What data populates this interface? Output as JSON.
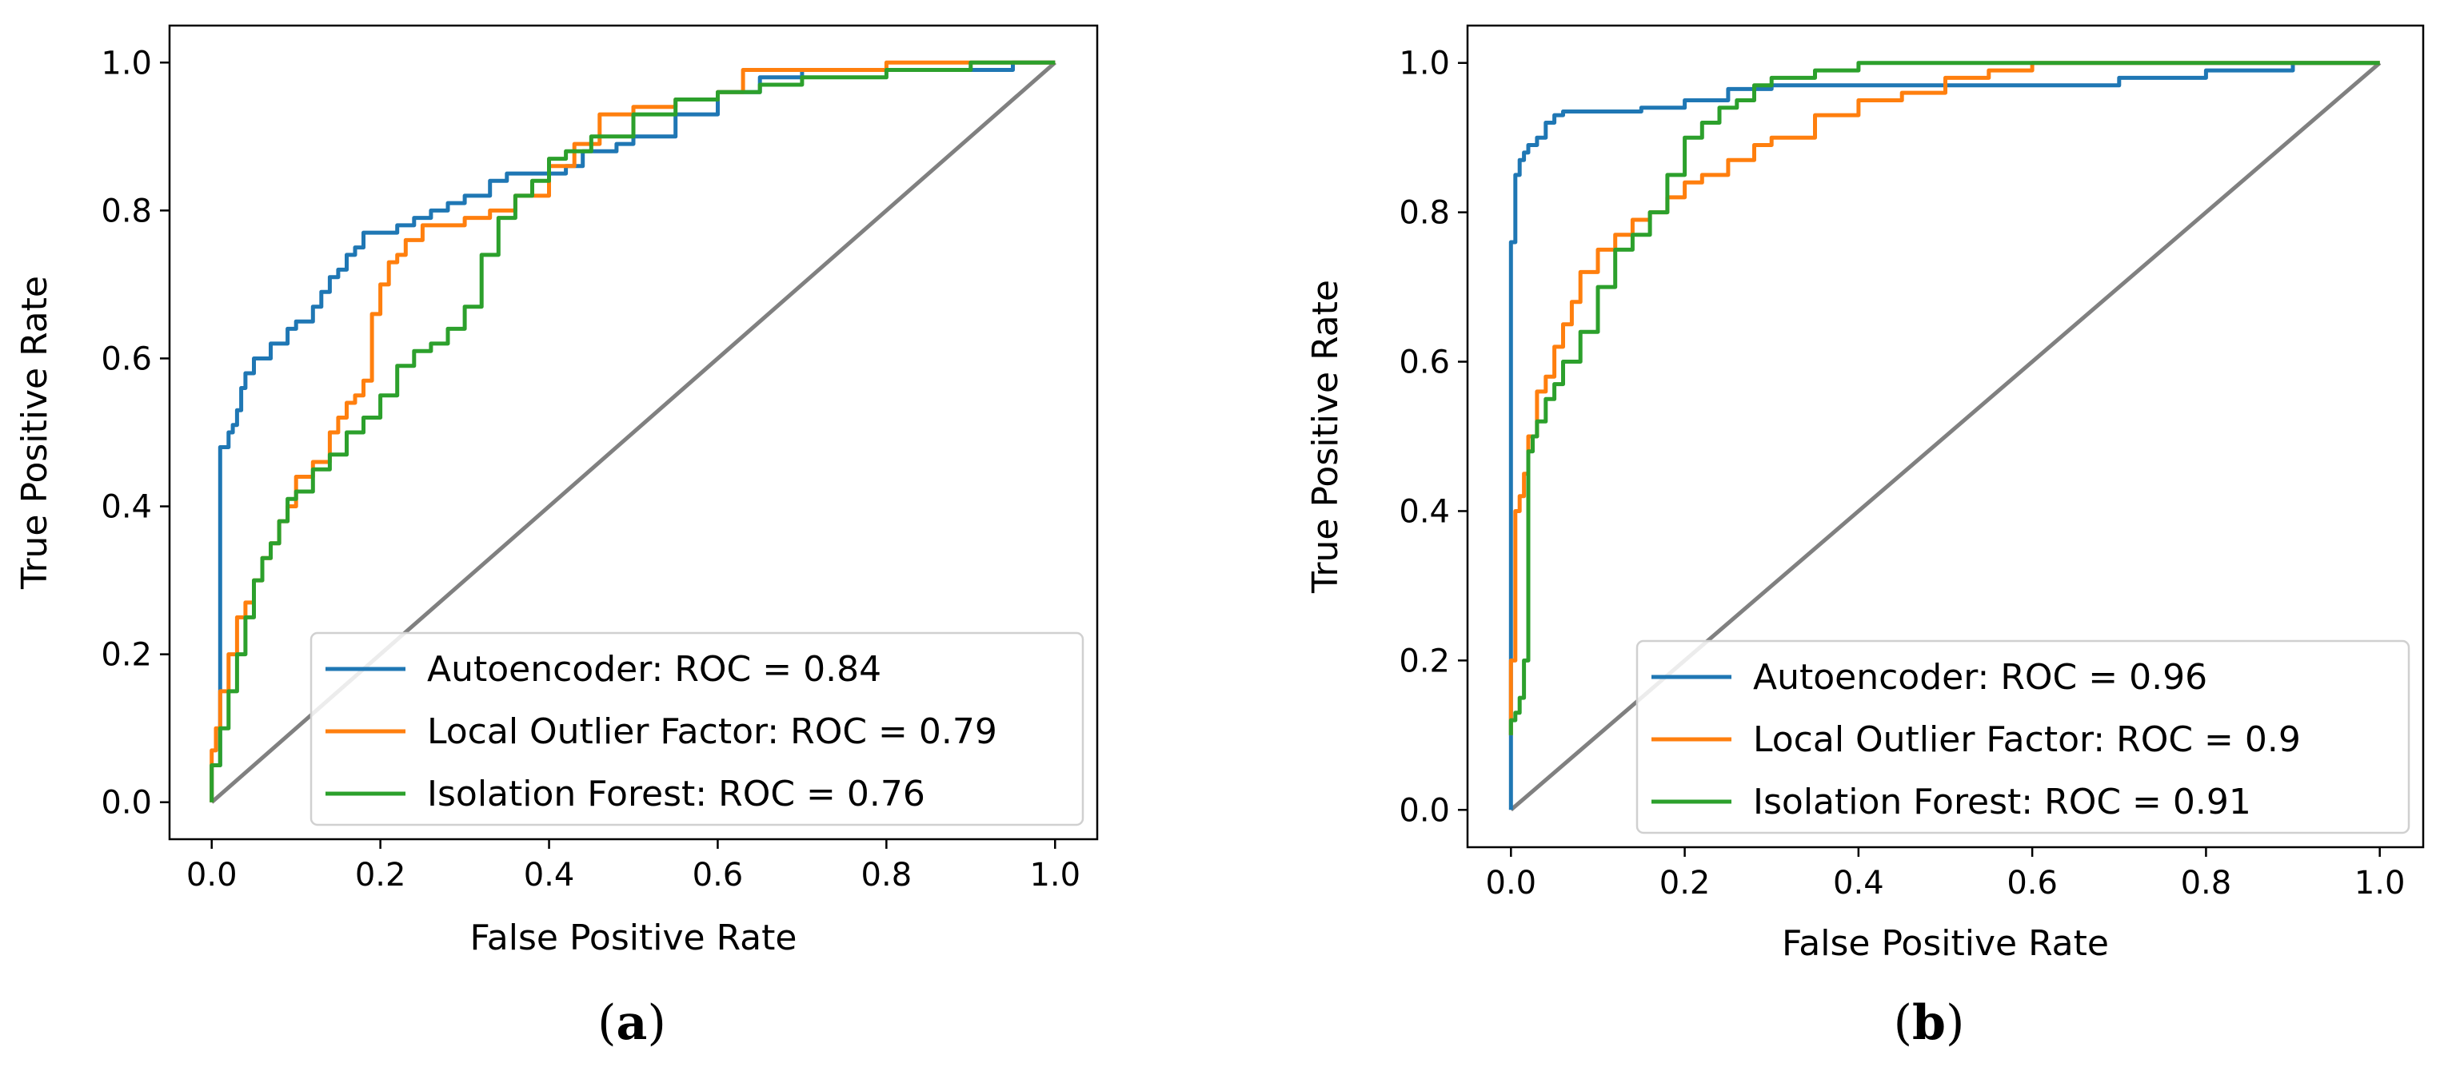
{
  "figure": {
    "panels": [
      "a",
      "b"
    ]
  },
  "chart_data": [
    {
      "type": "line",
      "panel_label": "a",
      "caption_open": "(",
      "caption_close": ")",
      "xlabel": "False Positive Rate",
      "ylabel": "True Positive Rate",
      "xlim": [
        -0.05,
        1.05
      ],
      "ylim": [
        -0.05,
        1.05
      ],
      "xticks": [
        0.0,
        0.2,
        0.4,
        0.6,
        0.8,
        1.0
      ],
      "yticks": [
        0.0,
        0.2,
        0.4,
        0.6,
        0.8,
        1.0
      ],
      "xtick_labels": [
        "0.0",
        "0.2",
        "0.4",
        "0.6",
        "0.8",
        "1.0"
      ],
      "ytick_labels": [
        "0.0",
        "0.2",
        "0.4",
        "0.6",
        "0.8",
        "1.0"
      ],
      "grid": false,
      "legend_position": "lower-right",
      "diagonal": {
        "x": [
          0,
          1
        ],
        "y": [
          0,
          1
        ],
        "color": "#808080"
      },
      "series": [
        {
          "name": "Autoencoder: ROC = 0.84",
          "color": "#1f77b4",
          "x": [
            0.0,
            0.01,
            0.01,
            0.02,
            0.025,
            0.03,
            0.035,
            0.04,
            0.045,
            0.05,
            0.06,
            0.07,
            0.09,
            0.1,
            0.12,
            0.13,
            0.14,
            0.15,
            0.16,
            0.17,
            0.18,
            0.19,
            0.2,
            0.22,
            0.24,
            0.26,
            0.28,
            0.3,
            0.33,
            0.35,
            0.38,
            0.42,
            0.44,
            0.48,
            0.5,
            0.55,
            0.6,
            0.65,
            0.7,
            0.8,
            0.9,
            0.95,
            1.0
          ],
          "y": [
            0.0,
            0.05,
            0.44,
            0.48,
            0.5,
            0.51,
            0.53,
            0.56,
            0.58,
            0.58,
            0.6,
            0.6,
            0.62,
            0.64,
            0.65,
            0.67,
            0.69,
            0.71,
            0.72,
            0.74,
            0.75,
            0.77,
            0.77,
            0.77,
            0.78,
            0.79,
            0.8,
            0.81,
            0.82,
            0.84,
            0.85,
            0.85,
            0.86,
            0.88,
            0.89,
            0.9,
            0.93,
            0.96,
            0.98,
            0.99,
            0.99,
            0.99,
            1.0
          ]
        },
        {
          "name": "Local Outlier Factor: ROC = 0.79",
          "color": "#ff7f0e",
          "x": [
            0.0,
            0.005,
            0.01,
            0.02,
            0.03,
            0.04,
            0.05,
            0.06,
            0.07,
            0.08,
            0.09,
            0.1,
            0.12,
            0.14,
            0.15,
            0.16,
            0.17,
            0.18,
            0.19,
            0.2,
            0.21,
            0.22,
            0.23,
            0.25,
            0.27,
            0.3,
            0.33,
            0.36,
            0.4,
            0.43,
            0.46,
            0.5,
            0.55,
            0.6,
            0.63,
            0.65,
            0.7,
            0.8,
            0.9,
            1.0
          ],
          "y": [
            0.0,
            0.07,
            0.1,
            0.15,
            0.2,
            0.25,
            0.27,
            0.3,
            0.33,
            0.35,
            0.38,
            0.4,
            0.44,
            0.46,
            0.5,
            0.52,
            0.54,
            0.55,
            0.57,
            0.66,
            0.7,
            0.73,
            0.74,
            0.76,
            0.78,
            0.78,
            0.79,
            0.8,
            0.82,
            0.86,
            0.89,
            0.93,
            0.94,
            0.95,
            0.96,
            0.99,
            0.99,
            0.99,
            1.0,
            1.0
          ]
        },
        {
          "name": "Isolation Forest: ROC = 0.76",
          "color": "#2ca02c",
          "x": [
            0.0,
            0.01,
            0.02,
            0.03,
            0.04,
            0.05,
            0.06,
            0.07,
            0.08,
            0.09,
            0.1,
            0.12,
            0.14,
            0.16,
            0.18,
            0.2,
            0.22,
            0.24,
            0.26,
            0.28,
            0.3,
            0.32,
            0.34,
            0.36,
            0.38,
            0.4,
            0.42,
            0.45,
            0.5,
            0.55,
            0.6,
            0.65,
            0.7,
            0.8,
            0.9,
            1.0
          ],
          "y": [
            0.0,
            0.05,
            0.1,
            0.15,
            0.2,
            0.25,
            0.3,
            0.33,
            0.35,
            0.38,
            0.41,
            0.42,
            0.45,
            0.47,
            0.5,
            0.52,
            0.55,
            0.59,
            0.61,
            0.62,
            0.64,
            0.67,
            0.74,
            0.79,
            0.82,
            0.84,
            0.87,
            0.88,
            0.9,
            0.93,
            0.95,
            0.96,
            0.97,
            0.98,
            0.99,
            1.0
          ]
        }
      ]
    },
    {
      "type": "line",
      "panel_label": "b",
      "caption_open": "(",
      "caption_close": ")",
      "xlabel": "False Positive Rate",
      "ylabel": "True Positive Rate",
      "xlim": [
        -0.05,
        1.05
      ],
      "ylim": [
        -0.05,
        1.05
      ],
      "xticks": [
        0.0,
        0.2,
        0.4,
        0.6,
        0.8,
        1.0
      ],
      "yticks": [
        0.0,
        0.2,
        0.4,
        0.6,
        0.8,
        1.0
      ],
      "xtick_labels": [
        "0.0",
        "0.2",
        "0.4",
        "0.6",
        "0.8",
        "1.0"
      ],
      "ytick_labels": [
        "0.0",
        "0.2",
        "0.4",
        "0.6",
        "0.8",
        "1.0"
      ],
      "grid": false,
      "legend_position": "lower-right",
      "diagonal": {
        "x": [
          0,
          1
        ],
        "y": [
          0,
          1
        ],
        "color": "#808080"
      },
      "series": [
        {
          "name": "Autoencoder: ROC = 0.96",
          "color": "#1f77b4",
          "x": [
            0.0,
            0.0,
            0.005,
            0.01,
            0.015,
            0.02,
            0.03,
            0.04,
            0.05,
            0.06,
            0.08,
            0.1,
            0.15,
            0.2,
            0.25,
            0.3,
            0.4,
            0.5,
            0.6,
            0.7,
            0.8,
            0.9,
            0.95,
            1.0
          ],
          "y": [
            0.0,
            0.42,
            0.76,
            0.85,
            0.87,
            0.88,
            0.89,
            0.9,
            0.92,
            0.93,
            0.935,
            0.935,
            0.935,
            0.94,
            0.95,
            0.965,
            0.97,
            0.97,
            0.97,
            0.97,
            0.98,
            0.99,
            1.0,
            1.0
          ]
        },
        {
          "name": "Local Outlier Factor: ROC = 0.9",
          "color": "#ff7f0e",
          "x": [
            0.0,
            0.005,
            0.01,
            0.015,
            0.02,
            0.03,
            0.04,
            0.05,
            0.06,
            0.07,
            0.08,
            0.1,
            0.12,
            0.14,
            0.16,
            0.18,
            0.2,
            0.22,
            0.25,
            0.28,
            0.3,
            0.35,
            0.4,
            0.45,
            0.5,
            0.55,
            0.6,
            0.65,
            0.8,
            1.0
          ],
          "y": [
            0.1,
            0.2,
            0.4,
            0.42,
            0.45,
            0.5,
            0.56,
            0.58,
            0.62,
            0.65,
            0.68,
            0.72,
            0.75,
            0.77,
            0.79,
            0.8,
            0.82,
            0.84,
            0.85,
            0.87,
            0.89,
            0.9,
            0.93,
            0.95,
            0.96,
            0.98,
            0.99,
            1.0,
            1.0,
            1.0
          ]
        },
        {
          "name": "Isolation Forest: ROC = 0.91",
          "color": "#2ca02c",
          "x": [
            0.0,
            0.005,
            0.01,
            0.015,
            0.02,
            0.025,
            0.03,
            0.04,
            0.05,
            0.06,
            0.08,
            0.1,
            0.12,
            0.14,
            0.16,
            0.18,
            0.2,
            0.22,
            0.24,
            0.26,
            0.28,
            0.3,
            0.35,
            0.4,
            0.45,
            0.5,
            0.7,
            1.0
          ],
          "y": [
            0.1,
            0.12,
            0.13,
            0.15,
            0.2,
            0.48,
            0.5,
            0.52,
            0.55,
            0.57,
            0.6,
            0.64,
            0.7,
            0.75,
            0.77,
            0.8,
            0.85,
            0.9,
            0.92,
            0.94,
            0.95,
            0.97,
            0.98,
            0.99,
            1.0,
            1.0,
            1.0,
            1.0
          ]
        }
      ]
    }
  ]
}
